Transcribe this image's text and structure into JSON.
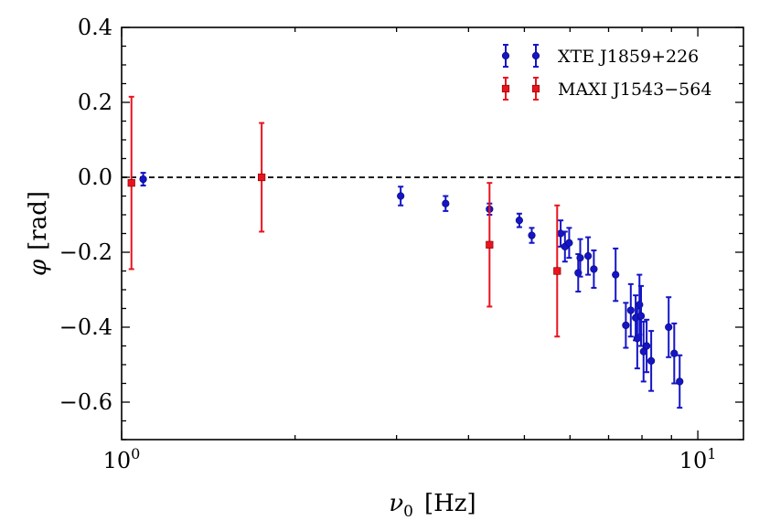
{
  "chart_data": {
    "type": "scatter",
    "title": "",
    "xlabel_symbol": "ν",
    "xlabel_subscript": "0",
    "xlabel_unit": "[Hz]",
    "ylabel_symbol": "φ",
    "ylabel_unit": "[rad]",
    "xscale": "log",
    "xlim": [
      1.0,
      12.0
    ],
    "ylim": [
      -0.7,
      0.4
    ],
    "x_ticks": [
      {
        "value": 1,
        "label": "10",
        "exp": "0"
      },
      {
        "value": 10,
        "label": "10",
        "exp": "1"
      }
    ],
    "y_ticks": [
      {
        "value": 0.4,
        "label": "0.4"
      },
      {
        "value": 0.2,
        "label": "0.2"
      },
      {
        "value": 0.0,
        "label": "0.0"
      },
      {
        "value": -0.2,
        "label": "−0.2"
      },
      {
        "value": -0.4,
        "label": "−0.4"
      },
      {
        "value": -0.6,
        "label": "−0.6"
      }
    ],
    "reference_line": {
      "y": 0.0,
      "style": "dashed"
    },
    "legend_position": "top-right",
    "series": [
      {
        "name": "XTE J1859+226",
        "color": "#1414c8",
        "marker": "circle",
        "points": [
          {
            "x": 1.09,
            "y": -0.005,
            "err": 0.017
          },
          {
            "x": 3.05,
            "y": -0.05,
            "err": 0.025
          },
          {
            "x": 3.65,
            "y": -0.07,
            "err": 0.02
          },
          {
            "x": 4.35,
            "y": -0.085,
            "err": 0.015
          },
          {
            "x": 4.9,
            "y": -0.115,
            "err": 0.018
          },
          {
            "x": 5.15,
            "y": -0.155,
            "err": 0.02
          },
          {
            "x": 5.78,
            "y": -0.15,
            "err": 0.035
          },
          {
            "x": 5.88,
            "y": -0.185,
            "err": 0.04
          },
          {
            "x": 5.98,
            "y": -0.175,
            "err": 0.04
          },
          {
            "x": 6.2,
            "y": -0.255,
            "err": 0.05
          },
          {
            "x": 6.25,
            "y": -0.215,
            "err": 0.05
          },
          {
            "x": 6.45,
            "y": -0.21,
            "err": 0.05
          },
          {
            "x": 6.6,
            "y": -0.245,
            "err": 0.05
          },
          {
            "x": 7.2,
            "y": -0.26,
            "err": 0.07
          },
          {
            "x": 7.5,
            "y": -0.395,
            "err": 0.06
          },
          {
            "x": 7.65,
            "y": -0.355,
            "err": 0.07
          },
          {
            "x": 7.8,
            "y": -0.375,
            "err": 0.06
          },
          {
            "x": 7.85,
            "y": -0.43,
            "err": 0.08
          },
          {
            "x": 7.92,
            "y": -0.34,
            "err": 0.08
          },
          {
            "x": 7.97,
            "y": -0.37,
            "err": 0.08
          },
          {
            "x": 8.05,
            "y": -0.465,
            "err": 0.08
          },
          {
            "x": 8.15,
            "y": -0.45,
            "err": 0.07
          },
          {
            "x": 8.3,
            "y": -0.49,
            "err": 0.08
          },
          {
            "x": 8.9,
            "y": -0.4,
            "err": 0.08
          },
          {
            "x": 9.1,
            "y": -0.47,
            "err": 0.08
          },
          {
            "x": 9.3,
            "y": -0.545,
            "err": 0.07
          }
        ]
      },
      {
        "name": "MAXI J1543−564",
        "color": "#e8141e",
        "marker": "square",
        "points": [
          {
            "x": 1.04,
            "y": -0.015,
            "err": 0.23
          },
          {
            "x": 1.75,
            "y": 0.0,
            "err": 0.145
          },
          {
            "x": 4.35,
            "y": -0.18,
            "err": 0.165
          },
          {
            "x": 5.7,
            "y": -0.25,
            "err": 0.175
          }
        ]
      }
    ]
  }
}
